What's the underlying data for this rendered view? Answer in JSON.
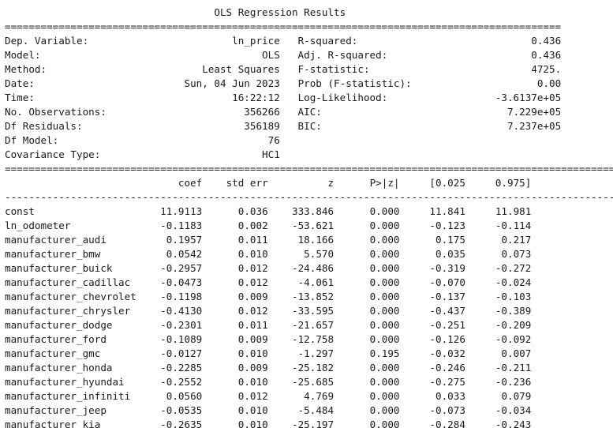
{
  "title": "OLS Regression Results",
  "rule_double": "=============================================================================================",
  "rule_double_wide": "==============================================================================================================",
  "rule_single_wide": "--------------------------------------------------------------------------------------------------------------",
  "summary": [
    {
      "left_label": "Dep. Variable:",
      "left_value": "ln_price",
      "right_label": "R-squared:",
      "right_value": "0.436"
    },
    {
      "left_label": "Model:",
      "left_value": "OLS",
      "right_label": "Adj. R-squared:",
      "right_value": "0.436"
    },
    {
      "left_label": "Method:",
      "left_value": "Least Squares",
      "right_label": "F-statistic:",
      "right_value": "4725."
    },
    {
      "left_label": "Date:",
      "left_value": "Sun, 04 Jun 2023",
      "right_label": "Prob (F-statistic):",
      "right_value": "0.00"
    },
    {
      "left_label": "Time:",
      "left_value": "16:22:12",
      "right_label": "Log-Likelihood:",
      "right_value": "-3.6137e+05"
    },
    {
      "left_label": "No. Observations:",
      "left_value": "356266",
      "right_label": "AIC:",
      "right_value": "7.229e+05"
    },
    {
      "left_label": "Df Residuals:",
      "left_value": "356189",
      "right_label": "BIC:",
      "right_value": "7.237e+05"
    },
    {
      "left_label": "Df Model:",
      "left_value": "76",
      "right_label": "",
      "right_value": ""
    },
    {
      "left_label": "Covariance Type:",
      "left_value": "HC1",
      "right_label": "",
      "right_value": ""
    }
  ],
  "coef_headers": [
    "coef",
    "std err",
    "z",
    "P>|z|",
    "[0.025",
    "0.975]"
  ],
  "coef_rows": [
    {
      "name": "const",
      "coef": "11.9113",
      "se": "0.036",
      "z": "333.846",
      "p": "0.000",
      "lo": "11.841",
      "hi": "11.981"
    },
    {
      "name": "ln_odometer",
      "coef": "-0.1183",
      "se": "0.002",
      "z": "-53.621",
      "p": "0.000",
      "lo": "-0.123",
      "hi": "-0.114"
    },
    {
      "name": "manufacturer_audi",
      "coef": "0.1957",
      "se": "0.011",
      "z": "18.166",
      "p": "0.000",
      "lo": "0.175",
      "hi": "0.217"
    },
    {
      "name": "manufacturer_bmw",
      "coef": "0.0542",
      "se": "0.010",
      "z": "5.570",
      "p": "0.000",
      "lo": "0.035",
      "hi": "0.073"
    },
    {
      "name": "manufacturer_buick",
      "coef": "-0.2957",
      "se": "0.012",
      "z": "-24.486",
      "p": "0.000",
      "lo": "-0.319",
      "hi": "-0.272"
    },
    {
      "name": "manufacturer_cadillac",
      "coef": "-0.0473",
      "se": "0.012",
      "z": "-4.061",
      "p": "0.000",
      "lo": "-0.070",
      "hi": "-0.024"
    },
    {
      "name": "manufacturer_chevrolet",
      "coef": "-0.1198",
      "se": "0.009",
      "z": "-13.852",
      "p": "0.000",
      "lo": "-0.137",
      "hi": "-0.103"
    },
    {
      "name": "manufacturer_chrysler",
      "coef": "-0.4130",
      "se": "0.012",
      "z": "-33.595",
      "p": "0.000",
      "lo": "-0.437",
      "hi": "-0.389"
    },
    {
      "name": "manufacturer_dodge",
      "coef": "-0.2301",
      "se": "0.011",
      "z": "-21.657",
      "p": "0.000",
      "lo": "-0.251",
      "hi": "-0.209"
    },
    {
      "name": "manufacturer_ford",
      "coef": "-0.1089",
      "se": "0.009",
      "z": "-12.758",
      "p": "0.000",
      "lo": "-0.126",
      "hi": "-0.092"
    },
    {
      "name": "manufacturer_gmc",
      "coef": "-0.0127",
      "se": "0.010",
      "z": "-1.297",
      "p": "0.195",
      "lo": "-0.032",
      "hi": "0.007"
    },
    {
      "name": "manufacturer_honda",
      "coef": "-0.2285",
      "se": "0.009",
      "z": "-25.182",
      "p": "0.000",
      "lo": "-0.246",
      "hi": "-0.211"
    },
    {
      "name": "manufacturer_hyundai",
      "coef": "-0.2552",
      "se": "0.010",
      "z": "-25.685",
      "p": "0.000",
      "lo": "-0.275",
      "hi": "-0.236"
    },
    {
      "name": "manufacturer_infiniti",
      "coef": "0.0560",
      "se": "0.012",
      "z": "4.769",
      "p": "0.000",
      "lo": "0.033",
      "hi": "0.079"
    },
    {
      "name": "manufacturer_jeep",
      "coef": "-0.0535",
      "se": "0.010",
      "z": "-5.484",
      "p": "0.000",
      "lo": "-0.073",
      "hi": "-0.034"
    },
    {
      "name": "manufacturer_kia",
      "coef": "-0.2635",
      "se": "0.010",
      "z": "-25.197",
      "p": "0.000",
      "lo": "-0.284",
      "hi": "-0.243"
    }
  ]
}
